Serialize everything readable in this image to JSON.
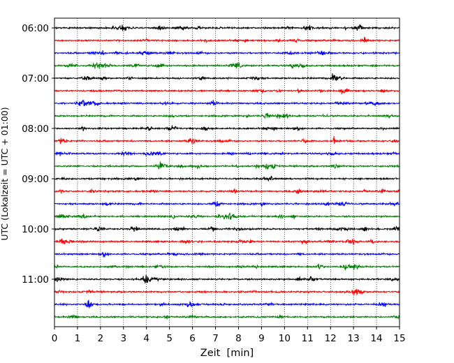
{
  "chart_data": {
    "type": "line",
    "title": "",
    "xlabel": "Zeit  [min]",
    "ylabel": "UTC (Lokalzeit = UTC + 01:00)",
    "xlim": [
      0,
      15
    ],
    "x_ticks": [
      "0",
      "1",
      "2",
      "3",
      "4",
      "5",
      "6",
      "7",
      "8",
      "9",
      "10",
      "11",
      "12",
      "13",
      "14",
      "15"
    ],
    "y_time_ticks": [
      {
        "label": "06:00",
        "trace": 0
      },
      {
        "label": "07:00",
        "trace": 4
      },
      {
        "label": "08:00",
        "trace": 8
      },
      {
        "label": "09:00",
        "trace": 12
      },
      {
        "label": "10:00",
        "trace": 16
      },
      {
        "label": "11:00",
        "trace": 20
      }
    ],
    "trace_interval_min": 15,
    "trace_count": 24,
    "trace_colors": [
      "#000000",
      "#ff0000",
      "#0000ff",
      "#008000"
    ],
    "x_grid": "dotted",
    "legend": "none"
  }
}
